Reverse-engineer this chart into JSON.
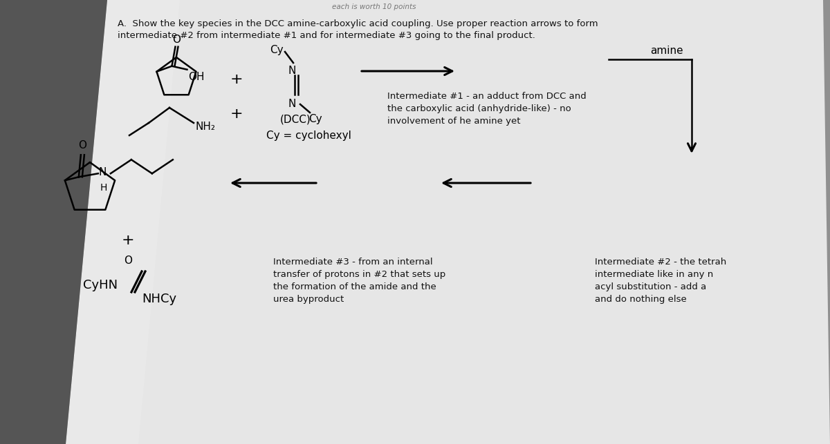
{
  "bg_color_top": "#aaaaaa",
  "bg_color_bot": "#888888",
  "paper_color": "#e8e8e8",
  "text_color": "#111111",
  "title_line1": "A.  Show the key species in the DCC amine-carboxylic acid coupling. Use proper reaction arrows to form",
  "title_line2": "intermediate #2 from intermediate #1 and for intermediate #3 going to the final product.",
  "int1_label": "Intermediate #1 - an adduct from DCC and\nthe carboxylic acid (anhydride-like) - no\ninvolvement of he amine yet",
  "int2_label": "Intermediate #2 - the tetrah\nintermediate like in any n\nacyl substitution - add a\nand do nothing else",
  "int3_label": "Intermediate #3 - from an internal\ntransfer of protons in #2 that sets up\nthe formation of the amide and the\nurea byproduct",
  "amine_label": "amine",
  "dcc_label": "(DCC)",
  "cy_cyclohexyl": "Cy = cyclohexyl",
  "header_text": "each is worth 10 points",
  "lw": 1.8
}
